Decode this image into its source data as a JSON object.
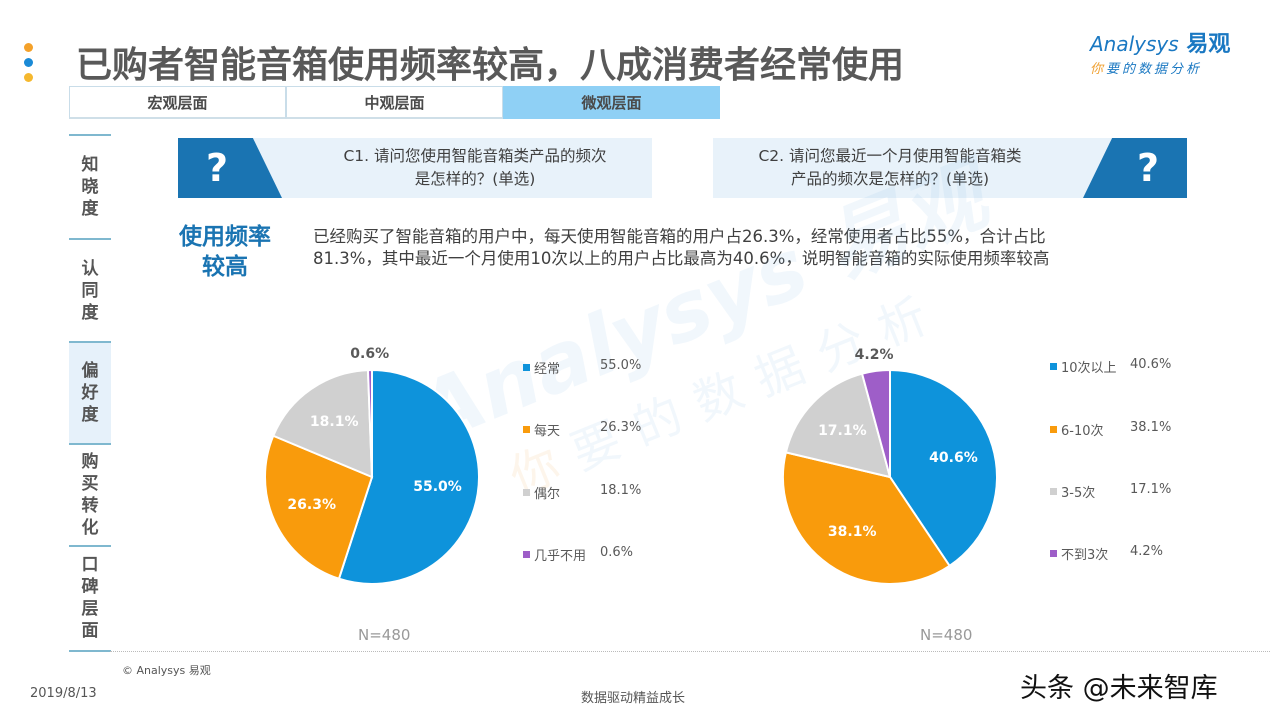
{
  "header": {
    "title": "已购者智能音箱使用频率较高，八成消费者经常使用",
    "dot_colors": [
      "#f4a12a",
      "#1a8ad6",
      "#f5b82e"
    ],
    "logo": {
      "brand_en": "Analysys",
      "brand_cn": "易观",
      "tagline_first": "你",
      "tagline_rest": "要的数据分析"
    }
  },
  "level_tabs": [
    {
      "label": "宏观层面",
      "active": false
    },
    {
      "label": "中观层面",
      "active": false
    },
    {
      "label": "微观层面",
      "active": true
    }
  ],
  "side_nav": [
    {
      "label": [
        "知",
        "晓",
        "度"
      ],
      "active": false
    },
    {
      "label": [
        "认",
        "同",
        "度"
      ],
      "active": false
    },
    {
      "label": [
        "偏",
        "好",
        "度"
      ],
      "active": true
    },
    {
      "label": [
        "购",
        "买",
        "转",
        "化"
      ],
      "active": false
    },
    {
      "label": [
        "口",
        "碑",
        "层",
        "面"
      ],
      "active": false
    }
  ],
  "questions": {
    "q1": {
      "icon": "?",
      "line1": "C1. 请问您使用智能音箱类产品的频次",
      "line2": "是怎样的？(单选)"
    },
    "q2": {
      "icon": "?",
      "line1": "C2. 请问您最近一个月使用智能音箱类",
      "line2": "产品的频次是怎样的？(单选)"
    }
  },
  "summary": {
    "title_line1": "使用频率",
    "title_line2": "较高",
    "text_line1": "已经购买了智能音箱的用户中，每天使用智能音箱的用户占26.3%，经常使用者占比55%，合计占比",
    "text_line2": "81.3%，其中最近一个月使用10次以上的用户占比最高为40.6%，说明智能音箱的实际使用频率较高"
  },
  "watermark": {
    "line1": "Analysys 易观",
    "line2_first": "你",
    "line2_rest": "要的数据分析"
  },
  "chart_data": [
    {
      "type": "pie",
      "title": "C1. 请问您使用智能音箱类产品的频次是怎样的？(单选)",
      "categories": [
        "经常",
        "每天",
        "偶尔",
        "几乎不用"
      ],
      "values": [
        55.0,
        26.3,
        18.1,
        0.6
      ],
      "labels": [
        "55.0%",
        "26.3%",
        "18.1%",
        "0.6%"
      ],
      "colors": [
        "#0e93db",
        "#f99b0c",
        "#d0d0d0",
        "#9e5ec8"
      ],
      "legend_position": "right",
      "sample": "N=480"
    },
    {
      "type": "pie",
      "title": "C2. 请问您最近一个月使用智能音箱类产品的频次是怎样的？(单选)",
      "categories": [
        "10次以上",
        "6-10次",
        "3-5次",
        "不到3次"
      ],
      "values": [
        40.6,
        38.1,
        17.1,
        4.2
      ],
      "labels": [
        "40.6%",
        "38.1%",
        "17.1%",
        "4.2%"
      ],
      "colors": [
        "#0e93db",
        "#f99b0c",
        "#d0d0d0",
        "#9e5ec8"
      ],
      "legend_position": "right",
      "sample": "N=480"
    }
  ],
  "footer": {
    "copyright": "© Analysys 易观",
    "date": "2019/8/13",
    "slogan": "数据驱动精益成长",
    "source_mark": "头条 @未来智库"
  }
}
